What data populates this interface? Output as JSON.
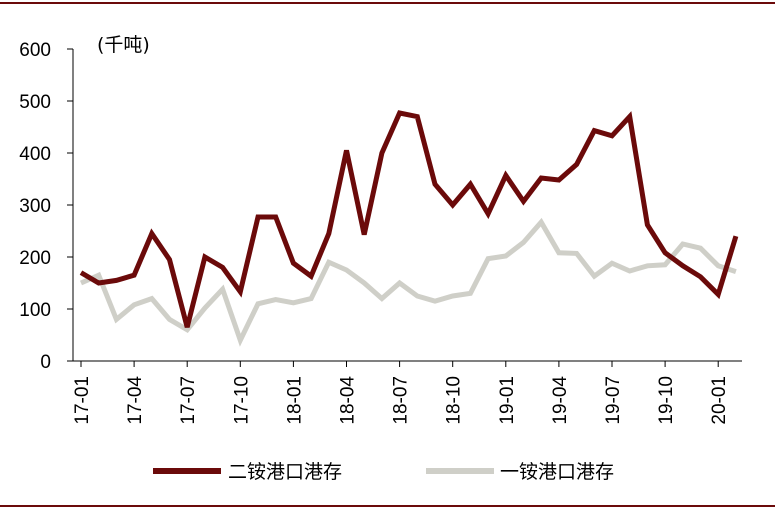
{
  "chart_data": {
    "type": "line",
    "unit_label": "(千吨)",
    "ylim": [
      0,
      600
    ],
    "yticks": [
      0,
      100,
      200,
      300,
      400,
      500,
      600
    ],
    "x_tick_labels": [
      "17-01",
      "17-04",
      "17-07",
      "17-10",
      "18-01",
      "18-04",
      "18-07",
      "18-10",
      "19-01",
      "19-04",
      "19-07",
      "19-10",
      "20-01"
    ],
    "x_tick_every": 3,
    "x": [
      "17-01",
      "17-02",
      "17-03",
      "17-04",
      "17-05",
      "17-06",
      "17-07",
      "17-08",
      "17-09",
      "17-10",
      "17-11",
      "17-12",
      "18-01",
      "18-02",
      "18-03",
      "18-04",
      "18-05",
      "18-06",
      "18-07",
      "18-08",
      "18-09",
      "18-10",
      "18-11",
      "18-12",
      "19-01",
      "19-02",
      "19-03",
      "19-04",
      "19-05",
      "19-06",
      "19-07",
      "19-08",
      "19-09",
      "19-10",
      "19-11",
      "19-12",
      "20-01",
      "20-02"
    ],
    "series": [
      {
        "name": "二铵港口港存",
        "color": "#6b0a0a",
        "values": [
          170,
          150,
          155,
          165,
          245,
          195,
          65,
          200,
          180,
          133,
          277,
          277,
          188,
          163,
          245,
          405,
          243,
          400,
          477,
          470,
          340,
          300,
          340,
          283,
          357,
          307,
          352,
          348,
          378,
          443,
          433,
          470,
          262,
          208,
          183,
          162,
          128,
          240
        ]
      },
      {
        "name": "一铵港口港存",
        "color": "#cfcfc8",
        "values": [
          150,
          165,
          80,
          108,
          120,
          80,
          60,
          102,
          138,
          40,
          110,
          118,
          112,
          120,
          190,
          175,
          150,
          120,
          150,
          125,
          115,
          125,
          130,
          197,
          202,
          228,
          267,
          208,
          207,
          163,
          188,
          173,
          183,
          185,
          225,
          217,
          183,
          172
        ]
      }
    ],
    "legend_position": "bottom"
  },
  "colors": {
    "frame_rule": "#6b0a0a",
    "axis": "#000000"
  }
}
